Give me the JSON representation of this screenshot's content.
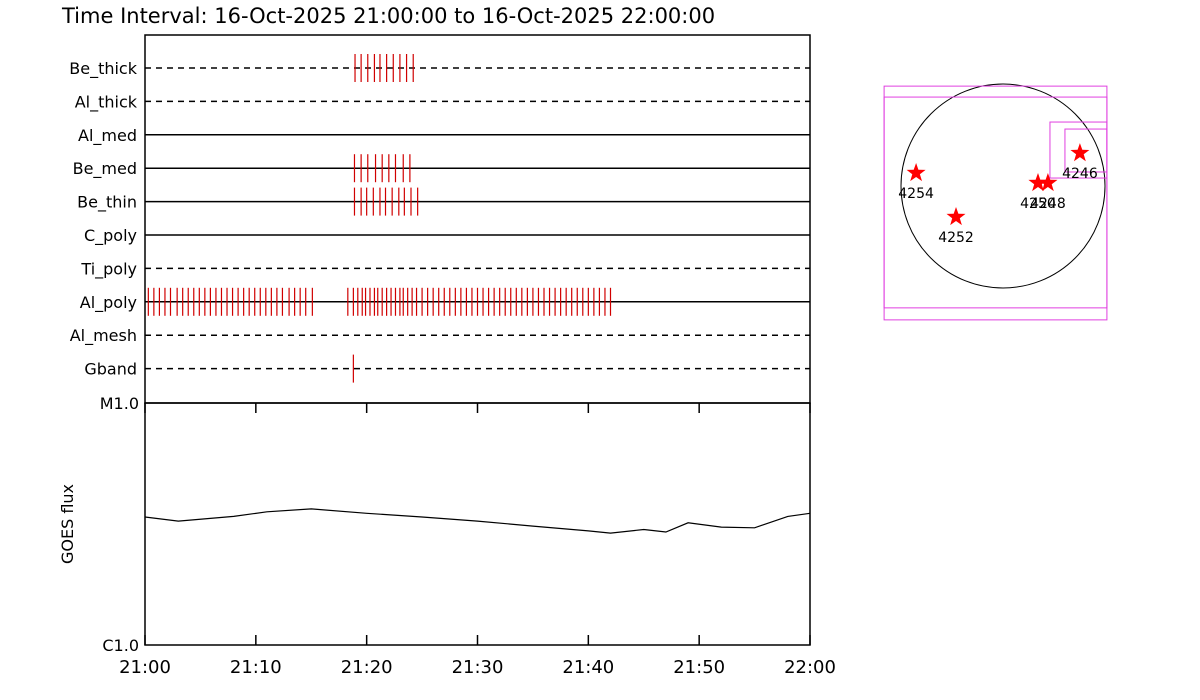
{
  "chart_data": [
    {
      "type": "timeline",
      "title": "Time Interval: 16-Oct-2025 21:00:00 to 16-Oct-2025 22:00:00",
      "xlim": [
        0,
        60
      ],
      "tick_color": "#d00000",
      "rows": [
        {
          "name": "Be_thick",
          "style": "dashed",
          "times": [
            18.95,
            19.5,
            20.1,
            20.7,
            21.2,
            21.8,
            22.4,
            23.0,
            23.6,
            24.2
          ]
        },
        {
          "name": "Al_thick",
          "style": "dashed",
          "times": []
        },
        {
          "name": "Al_med",
          "style": "solid",
          "times": []
        },
        {
          "name": "Be_med",
          "style": "solid",
          "times": [
            18.9,
            19.5,
            20.1,
            20.8,
            21.4,
            22.0,
            22.6,
            23.3,
            23.9
          ]
        },
        {
          "name": "Be_thin",
          "style": "solid",
          "times": [
            18.9,
            19.5,
            20.0,
            20.6,
            21.2,
            21.7,
            22.3,
            22.9,
            23.4,
            24.0,
            24.6
          ]
        },
        {
          "name": "C_poly",
          "style": "solid",
          "times": []
        },
        {
          "name": "Ti_poly",
          "style": "dashed",
          "times": []
        },
        {
          "name": "Al_poly",
          "style": "solid",
          "times": [
            0.3,
            0.8,
            1.3,
            1.8,
            2.3,
            2.9,
            3.4,
            3.9,
            4.4,
            4.9,
            5.4,
            5.9,
            6.4,
            6.9,
            7.4,
            7.9,
            8.4,
            8.9,
            9.4,
            9.9,
            10.4,
            10.9,
            11.4,
            11.9,
            12.4,
            13.0,
            13.5,
            14.0,
            14.5,
            15.1,
            18.3,
            18.8,
            19.2,
            19.6,
            19.9,
            20.3,
            20.7,
            21.0,
            21.4,
            21.8,
            22.2,
            22.6,
            23.0,
            23.3,
            23.7,
            24.1,
            24.5,
            25.0,
            25.5,
            26.0,
            26.5,
            27.0,
            27.5,
            28.0,
            28.5,
            29.0,
            29.5,
            30.0,
            30.5,
            31.0,
            31.5,
            32.0,
            32.5,
            33.0,
            33.5,
            34.0,
            34.5,
            35.0,
            35.5,
            36.0,
            36.5,
            37.0,
            37.5,
            38.0,
            38.5,
            39.0,
            39.5,
            40.0,
            40.5,
            41.0,
            41.5,
            42.0
          ]
        },
        {
          "name": "Al_mesh",
          "style": "dashed",
          "times": []
        },
        {
          "name": "Gband",
          "style": "dashed",
          "times": [
            18.8
          ]
        }
      ]
    },
    {
      "type": "line",
      "y_label": "GOES flux",
      "color": "#000000",
      "log_scale": true,
      "x": [
        0,
        3,
        8,
        11,
        15,
        20,
        25,
        30,
        35,
        40,
        42,
        45,
        47,
        49,
        52,
        55,
        58,
        60
      ],
      "values": [
        3.38e-06,
        3.25e-06,
        3.4e-06,
        3.55e-06,
        3.65e-06,
        3.5e-06,
        3.38e-06,
        3.25e-06,
        3.1e-06,
        2.96e-06,
        2.9e-06,
        3e-06,
        2.93e-06,
        3.2e-06,
        3.07e-06,
        3.05e-06,
        3.4e-06,
        3.5e-06
      ],
      "xlim": [
        0,
        60
      ],
      "xticks": [
        {
          "value": 0,
          "label": "21:00"
        },
        {
          "value": 10,
          "label": "21:10"
        },
        {
          "value": 20,
          "label": "21:20"
        },
        {
          "value": 30,
          "label": "21:30"
        },
        {
          "value": 40,
          "label": "21:40"
        },
        {
          "value": 50,
          "label": "21:50"
        },
        {
          "value": 60,
          "label": "22:00"
        }
      ],
      "ylim": [
        1e-06,
        1e-05
      ],
      "yticks": [
        {
          "value": 1e-06,
          "label": "C1.0"
        },
        {
          "value": 1e-05,
          "label": "M1.0"
        }
      ]
    },
    {
      "type": "map",
      "radius": 960,
      "fov_color": "#e040e0",
      "fovs": [
        [
          -1119,
          -1260,
          978,
          940
        ],
        [
          -1119,
          -1147,
          978,
          837
        ],
        [
          442,
          75,
          978,
          602
        ],
        [
          583,
          132,
          978,
          536
        ]
      ],
      "points": {
        "color": "#ff0000",
        "x": [
          -818,
          -442,
          329,
          423,
          724
        ],
        "y": [
          122,
          -292,
          28,
          28,
          310
        ],
        "labels": [
          "4254",
          "4252",
          "4250",
          "4248",
          "4246"
        ]
      }
    }
  ]
}
